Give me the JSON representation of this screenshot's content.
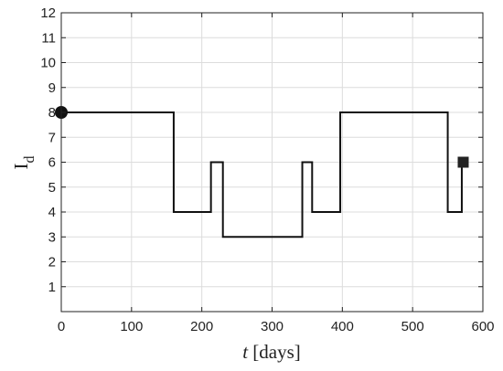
{
  "chart_data": {
    "type": "line",
    "title": "",
    "xlabel": {
      "italic": "t",
      "rest": " [days]"
    },
    "ylabel": {
      "main": "I",
      "sub": "d"
    },
    "xlim": [
      0,
      600
    ],
    "ylim": [
      0,
      12
    ],
    "xticks": [
      0,
      100,
      200,
      300,
      400,
      500,
      600
    ],
    "yticks": [
      1,
      2,
      3,
      4,
      5,
      6,
      7,
      8,
      9,
      10,
      11,
      12
    ],
    "grid": true,
    "series": [
      {
        "step": true,
        "x": [
          0,
          160,
          160,
          213,
          213,
          230,
          230,
          343,
          343,
          357,
          357,
          397,
          397,
          550,
          550,
          570,
          570
        ],
        "y": [
          8,
          8,
          4,
          4,
          6,
          6,
          3,
          3,
          6,
          6,
          4,
          4,
          8,
          8,
          4,
          4,
          6
        ],
        "color": "#111111"
      }
    ],
    "markers": [
      {
        "name": "start",
        "shape": "circle",
        "x": 0,
        "y": 8,
        "color": "#111111"
      },
      {
        "name": "end",
        "shape": "square",
        "x": 572,
        "y": 6,
        "color": "#222222"
      }
    ]
  }
}
